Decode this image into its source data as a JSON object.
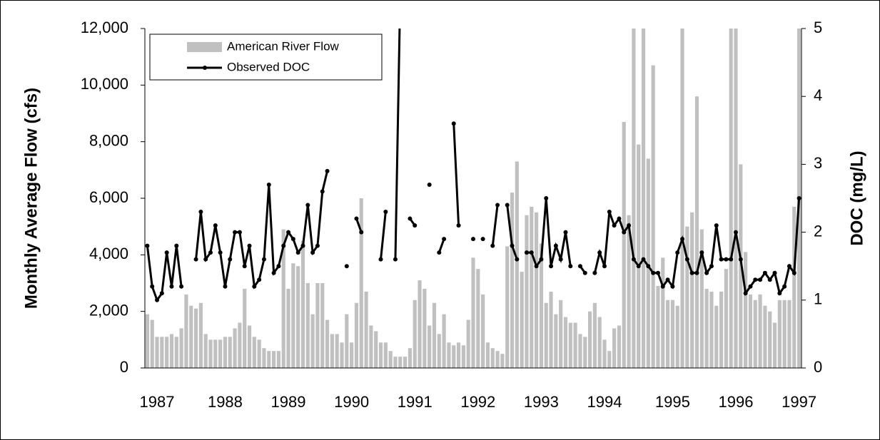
{
  "chart_data": {
    "type": "bar",
    "y_label": "Monthly Average Flow (cfs)",
    "y2_label": "DOC (mg/L)",
    "categories": [
      null,
      null,
      "1987",
      null,
      null,
      null,
      null,
      null,
      null,
      null,
      null,
      null,
      null,
      null,
      null,
      null,
      "1988",
      null,
      null,
      null,
      null,
      null,
      null,
      null,
      null,
      null,
      null,
      null,
      null,
      "1989",
      null,
      null,
      null,
      null,
      null,
      null,
      null,
      null,
      null,
      null,
      null,
      null,
      "1990",
      null,
      null,
      null,
      null,
      null,
      null,
      null,
      null,
      null,
      null,
      null,
      null,
      "1991",
      null,
      null,
      null,
      null,
      null,
      null,
      null,
      null,
      null,
      null,
      null,
      null,
      "1992",
      null,
      null,
      null,
      null,
      null,
      null,
      null,
      null,
      null,
      null,
      null,
      null,
      "1993",
      null,
      null,
      null,
      null,
      null,
      null,
      null,
      null,
      null,
      null,
      null,
      null,
      "1994",
      null,
      null,
      null,
      null,
      null,
      null,
      null,
      null,
      null,
      null,
      null,
      null,
      null,
      "1995",
      null,
      null,
      null,
      null,
      null,
      null,
      null,
      null,
      null,
      null,
      null,
      null,
      "1996",
      null,
      null,
      null,
      null,
      null,
      null,
      null,
      null,
      null,
      null,
      null,
      null,
      "1997"
    ],
    "series": [
      {
        "name": "American River Flow",
        "type": "bar",
        "color": "#c0c0c0",
        "values": [
          1900,
          1700,
          1100,
          1100,
          1100,
          1200,
          1100,
          1400,
          2600,
          2200,
          2100,
          2300,
          1200,
          1000,
          1000,
          1000,
          1100,
          1100,
          1400,
          1600,
          2800,
          1500,
          1100,
          1000,
          700,
          600,
          600,
          600,
          4900,
          2800,
          3700,
          3600,
          4500,
          3000,
          1900,
          3000,
          3000,
          1700,
          1200,
          1200,
          900,
          1900,
          900,
          2300,
          6000,
          2700,
          1500,
          1300,
          900,
          900,
          600,
          400,
          400,
          400,
          700,
          2400,
          3100,
          2800,
          1500,
          2300,
          1200,
          1900,
          900,
          800,
          900,
          800,
          1700,
          3900,
          3500,
          2600,
          900,
          700,
          600,
          500,
          4300,
          6200,
          7300,
          3400,
          5400,
          5700,
          5500,
          4400,
          2300,
          2700,
          1900,
          2400,
          1800,
          1600,
          1600,
          1200,
          1100,
          2000,
          2300,
          1800,
          1000,
          600,
          1400,
          1500,
          8700,
          5400,
          12000,
          7900,
          12000,
          7400,
          10700,
          2900,
          3900,
          2400,
          2400,
          2200,
          12000,
          5000,
          5500,
          9600,
          4900,
          2800,
          2700,
          2200,
          2700,
          3500,
          12000,
          12000,
          7200,
          4100,
          2600,
          2400,
          2600,
          2200,
          2000,
          1600,
          2400,
          2400,
          2400,
          5700,
          12000
        ]
      },
      {
        "name": "Observed DOC",
        "type": "line",
        "axis": "y2",
        "color": "#000000",
        "values": [
          1.8,
          1.2,
          1.0,
          1.1,
          1.7,
          1.2,
          1.8,
          1.2,
          null,
          null,
          1.6,
          2.3,
          1.6,
          1.7,
          2.1,
          1.7,
          1.2,
          1.6,
          2.0,
          2.0,
          1.5,
          1.8,
          1.2,
          1.3,
          1.6,
          2.7,
          1.4,
          1.5,
          1.8,
          2.0,
          1.9,
          1.7,
          1.8,
          2.4,
          1.7,
          1.8,
          2.6,
          2.9,
          null,
          null,
          null,
          1.5,
          null,
          2.2,
          2.0,
          null,
          null,
          null,
          1.6,
          2.3,
          null,
          1.6,
          5.5,
          null,
          2.2,
          2.1,
          null,
          null,
          2.7,
          null,
          1.7,
          1.9,
          null,
          3.6,
          2.1,
          null,
          null,
          1.9,
          null,
          1.9,
          null,
          1.8,
          2.4,
          null,
          2.4,
          1.8,
          1.6,
          null,
          1.7,
          1.7,
          1.5,
          1.6,
          2.5,
          1.5,
          1.8,
          1.6,
          2.0,
          1.5,
          null,
          1.5,
          1.4,
          null,
          1.4,
          1.7,
          1.5,
          2.3,
          2.1,
          2.2,
          2.0,
          2.1,
          1.6,
          1.5,
          1.6,
          1.5,
          1.4,
          1.4,
          1.2,
          1.3,
          1.2,
          1.7,
          1.9,
          1.6,
          1.4,
          1.4,
          1.7,
          1.4,
          1.5,
          2.1,
          1.6,
          1.6,
          1.6,
          2.0,
          1.6,
          1.1,
          1.2,
          1.3,
          1.3,
          1.4,
          1.3,
          1.4,
          1.1,
          1.2,
          1.5,
          1.4,
          2.5
        ]
      }
    ],
    "ylim": [
      0,
      12000
    ],
    "yticks": [
      0,
      {
        "value": 2000,
        "label": "2,000"
      },
      {
        "value": 4000,
        "label": "4,000"
      },
      {
        "value": 6000,
        "label": "6,000"
      },
      {
        "value": 8000,
        "label": "8,000"
      },
      {
        "value": 10000,
        "label": "10,000"
      },
      {
        "value": 12000,
        "label": "12,000"
      }
    ],
    "y2lim": [
      0,
      5
    ],
    "y2ticks": [
      0,
      1,
      2,
      3,
      4,
      5
    ],
    "grid": false,
    "legend": "upper-left"
  }
}
